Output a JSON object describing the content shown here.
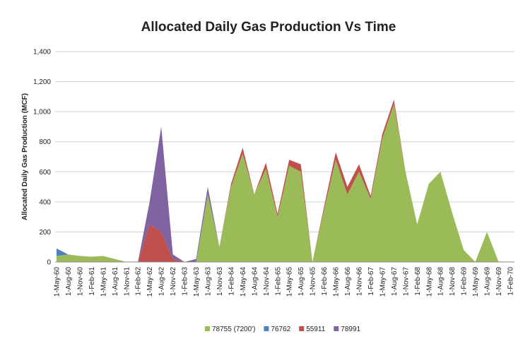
{
  "chart_data": {
    "type": "stacked_area",
    "title": "Allocated Daily Gas Production Vs Time",
    "y_label": "Allocated Daily Gas Production (MCF)",
    "categories": [
      "1-May-60",
      "1-Aug-60",
      "1-Nov-60",
      "1-Feb-61",
      "1-May-61",
      "1-Aug-61",
      "1-Nov-61",
      "1-Feb-62",
      "1-May-62",
      "1-Aug-62",
      "1-Nov-62",
      "1-Feb-63",
      "1-May-63",
      "1-Aug-63",
      "1-Nov-63",
      "1-Feb-64",
      "1-May-64",
      "1-Aug-64",
      "1-Nov-64",
      "1-Feb-65",
      "1-May-65",
      "1-Aug-65",
      "1-Nov-65",
      "1-Feb-66",
      "1-May-66",
      "1-Aug-66",
      "1-Nov-66",
      "1-Feb-67",
      "1-May-67",
      "1-Aug-67",
      "1-Nov-67",
      "1-Feb-68",
      "1-May-68",
      "1-Aug-68",
      "1-Nov-68",
      "1-Feb-69",
      "1-May-69",
      "1-Aug-69",
      "1-Nov-69",
      "1-Feb-70"
    ],
    "series": [
      {
        "name": "78755 (7200')",
        "color": "#9bbb59",
        "values": [
          40,
          50,
          40,
          35,
          40,
          20,
          0,
          0,
          0,
          0,
          0,
          0,
          0,
          450,
          100,
          500,
          720,
          450,
          620,
          300,
          640,
          600,
          0,
          350,
          680,
          450,
          600,
          420,
          820,
          1050,
          600,
          250,
          520,
          600,
          330,
          80,
          0,
          200,
          0,
          0
        ]
      },
      {
        "name": "76762",
        "color": "#4f81bd",
        "values": [
          50,
          0,
          0,
          0,
          0,
          0,
          0,
          0,
          0,
          0,
          0,
          0,
          0,
          0,
          0,
          0,
          0,
          0,
          0,
          0,
          0,
          0,
          0,
          0,
          0,
          0,
          0,
          0,
          0,
          0,
          0,
          0,
          0,
          0,
          0,
          0,
          0,
          0,
          0,
          0
        ]
      },
      {
        "name": "55911",
        "color": "#c0504d",
        "values": [
          0,
          0,
          0,
          0,
          0,
          0,
          0,
          0,
          250,
          200,
          20,
          0,
          0,
          0,
          0,
          20,
          40,
          0,
          40,
          20,
          40,
          50,
          0,
          20,
          50,
          50,
          50,
          20,
          30,
          30,
          0,
          0,
          0,
          0,
          0,
          0,
          0,
          0,
          0,
          0
        ]
      },
      {
        "name": "78991",
        "color": "#8064a2",
        "values": [
          0,
          0,
          0,
          0,
          0,
          0,
          0,
          0,
          150,
          700,
          30,
          0,
          20,
          50,
          0,
          0,
          0,
          0,
          0,
          0,
          0,
          0,
          0,
          0,
          0,
          0,
          0,
          0,
          0,
          0,
          0,
          0,
          0,
          0,
          0,
          0,
          0,
          0,
          0,
          0
        ]
      }
    ],
    "ylim": [
      0,
      1400
    ],
    "yticks": [
      0,
      {
        "value": 200,
        "label": "200"
      },
      400,
      600,
      800,
      {
        "value": 1000,
        "label": "1,000"
      },
      {
        "value": 1200,
        "label": "1,200"
      },
      {
        "value": 1400,
        "label": "1,400"
      }
    ],
    "grid": true,
    "legend": "bottom"
  }
}
